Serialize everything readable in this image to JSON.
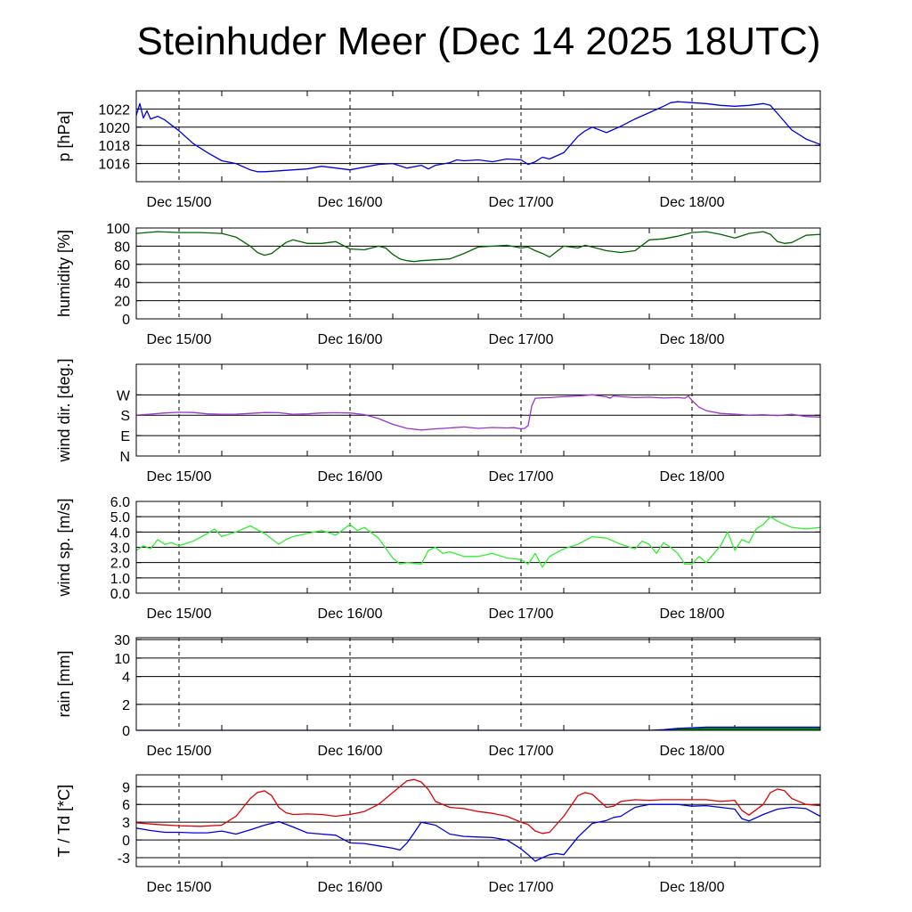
{
  "title": "Steinhuder Meer (Dec 14 2025 18UTC)",
  "x_axis": {
    "start": "Dec 14 18UTC",
    "end": "Dec 18 18UTC",
    "labels": [
      "Dec 15/00",
      "Dec 16/00",
      "Dec 17/00",
      "Dec 18/00"
    ],
    "label_hours": [
      6,
      30,
      54,
      78
    ],
    "range_hours": [
      0,
      96
    ]
  },
  "chart_data": [
    {
      "type": "line",
      "ylabel": "p [hPa]",
      "ylim": [
        1014,
        1024
      ],
      "yticks": [
        1016,
        1018,
        1020,
        1022
      ],
      "ytick_labels": [
        "1016",
        "1018",
        "1020",
        "1022"
      ],
      "color": "#0000dd",
      "series": [
        {
          "name": "pressure",
          "x": [
            0,
            0.5,
            1,
            1.5,
            2,
            3,
            4,
            5,
            6,
            8,
            10,
            12,
            14,
            16,
            17,
            18,
            20,
            22,
            24,
            26,
            28,
            30,
            32,
            34,
            36,
            38,
            40,
            41,
            42,
            44,
            45,
            46,
            48,
            50,
            52,
            54,
            55,
            56,
            57,
            58,
            60,
            62,
            63,
            64,
            66,
            68,
            70,
            72,
            74,
            75,
            76,
            78,
            80,
            82,
            84,
            86,
            88,
            89,
            90,
            92,
            94,
            96
          ],
          "y": [
            1021.3,
            1022.6,
            1021.0,
            1021.8,
            1020.9,
            1021.2,
            1020.8,
            1020.2,
            1019.6,
            1018.2,
            1017.2,
            1016.3,
            1016.0,
            1015.3,
            1015.1,
            1015.1,
            1015.2,
            1015.3,
            1015.4,
            1015.7,
            1015.5,
            1015.3,
            1015.6,
            1015.9,
            1016.0,
            1015.5,
            1015.8,
            1015.4,
            1015.8,
            1016.1,
            1016.4,
            1016.3,
            1016.4,
            1016.2,
            1016.5,
            1016.4,
            1015.9,
            1016.2,
            1016.7,
            1016.5,
            1017.2,
            1019.0,
            1019.6,
            1020.0,
            1019.4,
            1020.1,
            1020.9,
            1021.6,
            1022.3,
            1022.7,
            1022.8,
            1022.7,
            1022.6,
            1022.4,
            1022.3,
            1022.4,
            1022.6,
            1022.4,
            1021.5,
            1019.7,
            1018.7,
            1018.1
          ]
        }
      ]
    },
    {
      "type": "line",
      "ylabel": "humidity [%]",
      "ylim": [
        0,
        100
      ],
      "yticks": [
        0,
        20,
        40,
        60,
        80,
        100
      ],
      "ytick_labels": [
        "0",
        "20",
        "40",
        "60",
        "80",
        "100"
      ],
      "color": "#006400",
      "series": [
        {
          "name": "humidity",
          "x": [
            0,
            3,
            6,
            9,
            12,
            14,
            16,
            17,
            18,
            19,
            20,
            21,
            22,
            23,
            24,
            26,
            28,
            30,
            32,
            34,
            35,
            36,
            37,
            38,
            39,
            40,
            42,
            44,
            46,
            48,
            50,
            52,
            54,
            55,
            56,
            57,
            58,
            59,
            60,
            62,
            63,
            64,
            66,
            68,
            69,
            70,
            72,
            74,
            76,
            78,
            80,
            82,
            84,
            86,
            87,
            88,
            89,
            90,
            91,
            92,
            94,
            96
          ],
          "y": [
            94,
            96,
            95,
            95,
            94,
            90,
            80,
            73,
            70,
            72,
            78,
            84,
            87,
            85,
            83,
            83,
            85,
            77,
            76,
            80,
            78,
            71,
            66,
            64,
            63,
            64,
            65,
            66,
            72,
            79,
            80,
            81,
            78,
            79,
            75,
            72,
            68,
            74,
            80,
            78,
            81,
            79,
            75,
            73,
            74,
            75,
            87,
            88,
            91,
            95,
            96,
            93,
            89,
            94,
            95,
            96,
            93,
            85,
            83,
            84,
            92,
            93
          ]
        }
      ]
    },
    {
      "type": "line",
      "ylabel": "wind dir. [deg.]",
      "ylim": [
        0,
        405
      ],
      "yticks": [
        0,
        90,
        180,
        270
      ],
      "ytick_labels": [
        "N",
        "E",
        "S",
        "W"
      ],
      "color": "#9933cc",
      "series": [
        {
          "name": "wind direction",
          "x": [
            0,
            2,
            4,
            6,
            8,
            10,
            12,
            14,
            16,
            18,
            20,
            22,
            24,
            26,
            28,
            30,
            32,
            34,
            36,
            38,
            40,
            42,
            44,
            46,
            48,
            50,
            52,
            53,
            54,
            54.5,
            55,
            55.5,
            56,
            58,
            60,
            62,
            64,
            66,
            66.5,
            67,
            68,
            70,
            72,
            74,
            76,
            77,
            77.5,
            78,
            79,
            80,
            82,
            84,
            86,
            88,
            90,
            92,
            94,
            96
          ],
          "y": [
            180,
            185,
            190,
            193,
            192,
            186,
            184,
            185,
            188,
            192,
            191,
            184,
            186,
            190,
            191,
            190,
            183,
            165,
            140,
            122,
            115,
            120,
            124,
            128,
            122,
            126,
            124,
            125,
            120,
            122,
            135,
            220,
            255,
            258,
            262,
            265,
            270,
            261,
            255,
            265,
            262,
            258,
            260,
            256,
            258,
            255,
            265,
            245,
            215,
            200,
            188,
            185,
            180,
            182,
            178,
            184,
            174,
            172
          ]
        }
      ]
    },
    {
      "type": "line",
      "ylabel": "wind sp. [m/s]",
      "ylim": [
        0,
        6
      ],
      "yticks": [
        0,
        1,
        2,
        3,
        4,
        5,
        6
      ],
      "ytick_labels": [
        "0.0",
        "1.0",
        "2.0",
        "3.0",
        "4.0",
        "5.0",
        "6.0"
      ],
      "color": "#33ee33",
      "series": [
        {
          "name": "wind speed",
          "x": [
            0,
            1,
            2,
            3,
            4,
            5,
            6,
            8,
            10,
            11,
            12,
            14,
            16,
            18,
            20,
            21,
            22,
            24,
            26,
            28,
            30,
            31,
            32,
            34,
            36,
            37,
            38,
            40,
            41,
            42,
            43,
            44,
            46,
            48,
            50,
            52,
            54,
            55,
            56,
            57,
            58,
            60,
            62,
            64,
            66,
            68,
            70,
            71,
            72,
            73,
            74,
            75,
            76,
            77,
            78,
            79,
            80,
            82,
            83,
            84,
            85,
            86,
            87,
            88,
            89,
            90,
            92,
            94,
            96
          ],
          "y": [
            2.8,
            3.1,
            2.9,
            3.5,
            3.2,
            3.3,
            3.1,
            3.4,
            3.9,
            4.2,
            3.7,
            4.0,
            4.4,
            3.9,
            3.2,
            3.5,
            3.7,
            3.9,
            4.1,
            3.8,
            4.5,
            4.1,
            4.3,
            3.6,
            2.3,
            1.9,
            2.0,
            1.9,
            2.8,
            3.0,
            2.6,
            2.7,
            2.4,
            2.4,
            2.6,
            2.3,
            2.2,
            1.9,
            2.6,
            1.7,
            2.4,
            2.9,
            3.2,
            3.7,
            3.6,
            3.2,
            2.9,
            3.4,
            3.2,
            2.6,
            3.3,
            3.0,
            2.6,
            1.9,
            1.9,
            2.4,
            2.0,
            3.1,
            4.0,
            2.8,
            3.5,
            3.3,
            4.2,
            4.5,
            5.0,
            4.7,
            4.3,
            4.2,
            4.3
          ]
        }
      ]
    },
    {
      "type": "area",
      "ylabel": "rain [mm]",
      "scale": "nonlinear",
      "yticks": [
        0,
        2,
        4,
        10,
        30
      ],
      "ytick_labels": [
        "0",
        "2",
        "4",
        "10",
        "30"
      ],
      "color": "#008000",
      "edge_color": "#0000dd",
      "series": [
        {
          "name": "accumulated rain",
          "x": [
            0,
            70,
            72,
            74,
            76,
            78,
            80,
            96
          ],
          "y": [
            0,
            0,
            0,
            0.05,
            0.15,
            0.2,
            0.25,
            0.25
          ]
        }
      ]
    },
    {
      "type": "line",
      "ylabel": "T / Td [*C]",
      "ylim": [
        -4.5,
        11
      ],
      "yticks": [
        -3,
        0,
        3,
        6,
        9
      ],
      "ytick_labels": [
        "-3",
        "0",
        "3",
        "6",
        "9"
      ],
      "series": [
        {
          "name": "T",
          "color": "#dd0000",
          "x": [
            0,
            3,
            6,
            9,
            12,
            14,
            16,
            17,
            18,
            19,
            20,
            21,
            22,
            24,
            26,
            28,
            30,
            32,
            34,
            36,
            38,
            39,
            40,
            41,
            42,
            44,
            46,
            48,
            50,
            52,
            54,
            55,
            56,
            57,
            58,
            60,
            62,
            63,
            64,
            66,
            67,
            68,
            70,
            72,
            74,
            76,
            78,
            80,
            82,
            84,
            85,
            86,
            88,
            89,
            90,
            91,
            92,
            94,
            96
          ],
          "y": [
            2.9,
            2.6,
            2.4,
            2.3,
            2.5,
            4.0,
            7.0,
            8.0,
            8.3,
            7.5,
            5.5,
            4.6,
            4.3,
            4.4,
            4.3,
            4.0,
            4.3,
            4.8,
            6.0,
            8.0,
            10.0,
            10.2,
            9.8,
            8.5,
            6.5,
            5.5,
            5.3,
            4.8,
            4.5,
            4.0,
            3.0,
            2.6,
            1.5,
            1.1,
            1.3,
            4.0,
            7.5,
            8.0,
            7.7,
            5.5,
            5.7,
            6.5,
            6.8,
            6.7,
            6.8,
            6.8,
            6.8,
            6.8,
            6.5,
            6.7,
            5.0,
            4.2,
            6.0,
            8.0,
            8.6,
            8.3,
            7.0,
            6.0,
            5.8
          ]
        },
        {
          "name": "Td",
          "color": "#0000dd",
          "x": [
            0,
            2,
            4,
            6,
            8,
            10,
            12,
            14,
            16,
            18,
            20,
            22,
            24,
            26,
            28,
            30,
            32,
            34,
            36,
            37,
            38,
            39,
            40,
            42,
            44,
            46,
            48,
            50,
            52,
            54,
            55,
            56,
            57,
            58,
            59,
            60,
            62,
            64,
            66,
            67,
            68,
            70,
            72,
            74,
            76,
            78,
            80,
            82,
            84,
            85,
            86,
            88,
            90,
            92,
            94,
            96
          ],
          "y": [
            2.0,
            1.6,
            1.3,
            1.3,
            1.2,
            1.2,
            1.5,
            1.0,
            1.7,
            2.5,
            3.1,
            2.2,
            1.2,
            1.0,
            0.8,
            -0.5,
            -0.6,
            -1.0,
            -1.4,
            -1.7,
            -0.5,
            1.2,
            3.0,
            2.5,
            1.0,
            0.6,
            0.5,
            0.4,
            0.0,
            -1.5,
            -2.5,
            -3.6,
            -3.0,
            -2.5,
            -2.3,
            -2.5,
            0.5,
            2.8,
            3.3,
            3.8,
            4.0,
            5.5,
            6.0,
            6.0,
            6.0,
            5.7,
            5.8,
            5.5,
            5.2,
            3.6,
            3.2,
            4.3,
            5.2,
            5.5,
            5.3,
            4.0
          ]
        }
      ]
    }
  ]
}
